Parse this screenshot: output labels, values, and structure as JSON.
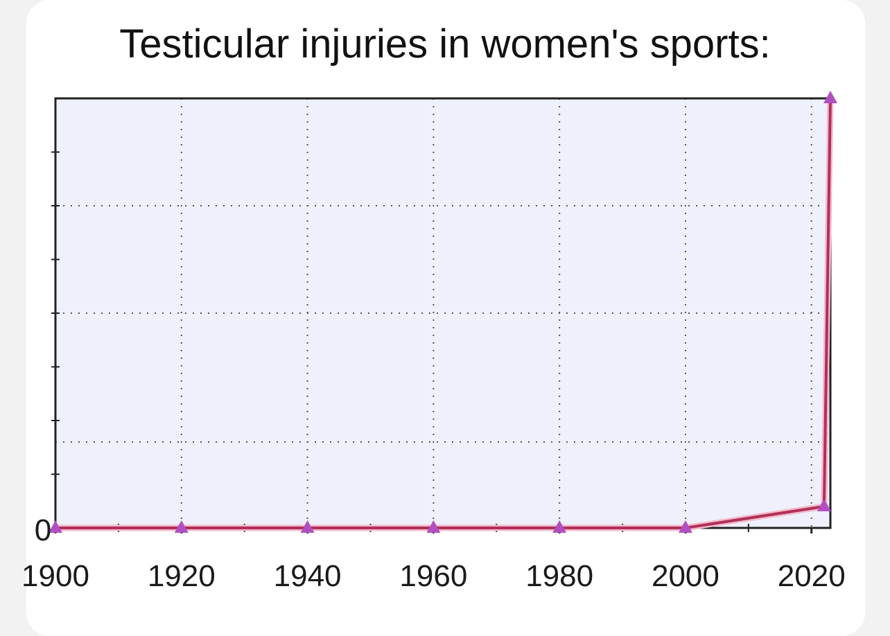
{
  "chart_data": {
    "type": "line",
    "title": "Testicular injuries in women's sports:",
    "xlabel": "",
    "ylabel": "",
    "x_ticks": [
      "1900",
      "1920",
      "1940",
      "1960",
      "1980",
      "2000",
      "2020"
    ],
    "y_tick_labels": [
      "0"
    ],
    "xlim": [
      1900,
      2023
    ],
    "ylim": [
      0,
      100
    ],
    "grid": true,
    "colors": {
      "line": "#b0305a",
      "marker": "#b24fc0",
      "plot_bg": "#eef0fb",
      "frame": "#222222"
    },
    "series": [
      {
        "values": [
          {
            "x": 1900,
            "y": 0
          },
          {
            "x": 1920,
            "y": 0
          },
          {
            "x": 1940,
            "y": 0
          },
          {
            "x": 1960,
            "y": 0
          },
          {
            "x": 1980,
            "y": 0
          },
          {
            "x": 2000,
            "y": 0
          },
          {
            "x": 2022,
            "y": 5
          },
          {
            "x": 2023,
            "y": 100
          }
        ]
      }
    ]
  }
}
